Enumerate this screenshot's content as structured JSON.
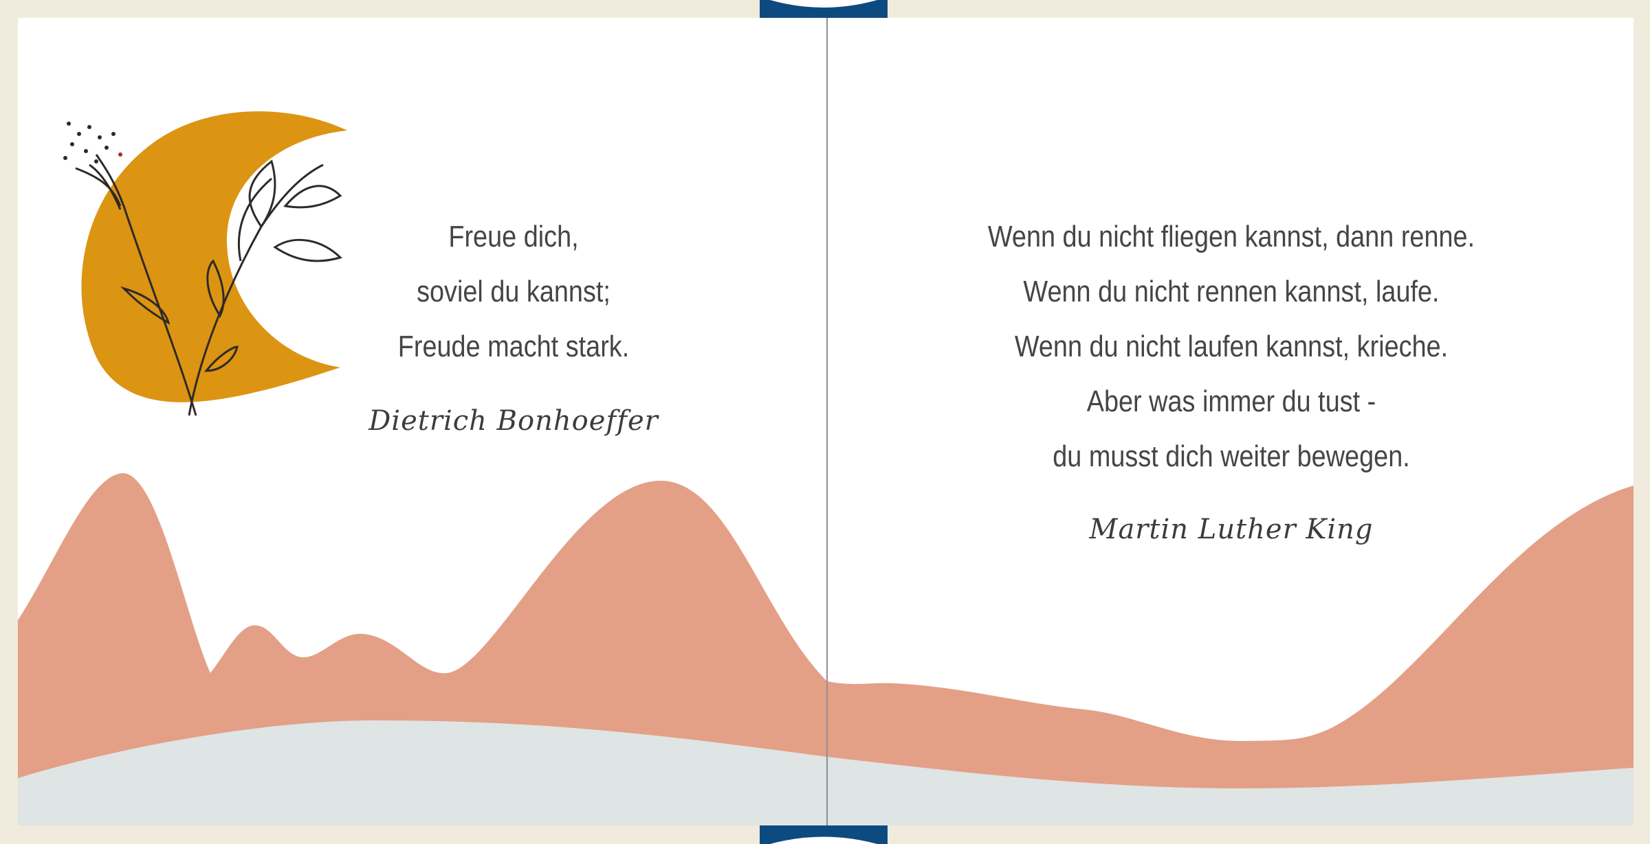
{
  "colors": {
    "page": "#ffffff",
    "frame": "#f1ebdd",
    "moon": "#dc9413",
    "mountains": "#e3a086",
    "ground": "#dfe4e4",
    "tab": "#0d4a80",
    "text": "#454545"
  },
  "left_page": {
    "quote_lines": [
      "Freue dich,",
      "soviel du kannst;",
      "Freude macht stark."
    ],
    "author": "Dietrich Bonhoeffer"
  },
  "right_page": {
    "quote_lines": [
      "Wenn du nicht fliegen kannst, dann renne.",
      "Wenn du nicht rennen kannst, laufe.",
      "Wenn du nicht laufen kannst, krieche.",
      "Aber was immer du tust -",
      "du musst dich weiter bewegen."
    ],
    "author": "Martin Luther King"
  }
}
